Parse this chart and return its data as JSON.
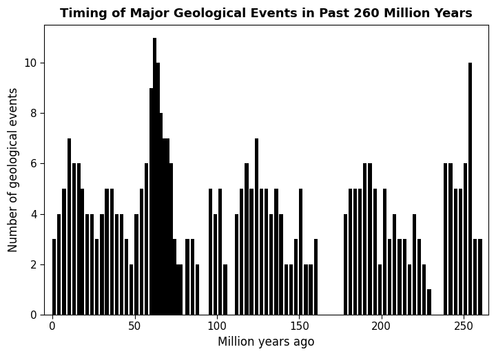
{
  "title": "Timing of Major Geological Events in Past 260 Million Years",
  "xlabel": "Million years ago",
  "ylabel": "Number of geological events",
  "bar_color": "#000000",
  "background_color": "#ffffff",
  "ylim": [
    0,
    11.5
  ],
  "xlim": [
    -5,
    265
  ],
  "yticks": [
    0,
    2,
    4,
    6,
    8,
    10
  ],
  "xticks": [
    0,
    50,
    100,
    150,
    200,
    250
  ],
  "title_fontsize": 13,
  "axis_fontsize": 12,
  "tick_fontsize": 11,
  "bar_width": 2.2,
  "bars": [
    {
      "x": 1,
      "height": 3
    },
    {
      "x": 4,
      "height": 4
    },
    {
      "x": 7,
      "height": 5
    },
    {
      "x": 10,
      "height": 7
    },
    {
      "x": 13,
      "height": 6
    },
    {
      "x": 16,
      "height": 6
    },
    {
      "x": 18,
      "height": 5
    },
    {
      "x": 21,
      "height": 4
    },
    {
      "x": 24,
      "height": 4
    },
    {
      "x": 27,
      "height": 3
    },
    {
      "x": 30,
      "height": 4
    },
    {
      "x": 33,
      "height": 5
    },
    {
      "x": 36,
      "height": 5
    },
    {
      "x": 39,
      "height": 4
    },
    {
      "x": 42,
      "height": 4
    },
    {
      "x": 45,
      "height": 3
    },
    {
      "x": 48,
      "height": 2
    },
    {
      "x": 51,
      "height": 4
    },
    {
      "x": 54,
      "height": 5
    },
    {
      "x": 57,
      "height": 6
    },
    {
      "x": 60,
      "height": 9
    },
    {
      "x": 62,
      "height": 11
    },
    {
      "x": 64,
      "height": 10
    },
    {
      "x": 66,
      "height": 8
    },
    {
      "x": 68,
      "height": 7
    },
    {
      "x": 70,
      "height": 7
    },
    {
      "x": 72,
      "height": 6
    },
    {
      "x": 74,
      "height": 3
    },
    {
      "x": 76,
      "height": 2
    },
    {
      "x": 78,
      "height": 2
    },
    {
      "x": 82,
      "height": 3
    },
    {
      "x": 85,
      "height": 3
    },
    {
      "x": 88,
      "height": 2
    },
    {
      "x": 96,
      "height": 5
    },
    {
      "x": 99,
      "height": 4
    },
    {
      "x": 102,
      "height": 5
    },
    {
      "x": 105,
      "height": 2
    },
    {
      "x": 112,
      "height": 4
    },
    {
      "x": 115,
      "height": 5
    },
    {
      "x": 118,
      "height": 6
    },
    {
      "x": 121,
      "height": 5
    },
    {
      "x": 124,
      "height": 7
    },
    {
      "x": 127,
      "height": 5
    },
    {
      "x": 130,
      "height": 5
    },
    {
      "x": 133,
      "height": 4
    },
    {
      "x": 136,
      "height": 5
    },
    {
      "x": 139,
      "height": 4
    },
    {
      "x": 142,
      "height": 2
    },
    {
      "x": 145,
      "height": 2
    },
    {
      "x": 148,
      "height": 3
    },
    {
      "x": 151,
      "height": 5
    },
    {
      "x": 154,
      "height": 2
    },
    {
      "x": 157,
      "height": 2
    },
    {
      "x": 160,
      "height": 3
    },
    {
      "x": 178,
      "height": 4
    },
    {
      "x": 181,
      "height": 5
    },
    {
      "x": 184,
      "height": 5
    },
    {
      "x": 187,
      "height": 5
    },
    {
      "x": 190,
      "height": 6
    },
    {
      "x": 193,
      "height": 6
    },
    {
      "x": 196,
      "height": 5
    },
    {
      "x": 199,
      "height": 2
    },
    {
      "x": 202,
      "height": 5
    },
    {
      "x": 205,
      "height": 3
    },
    {
      "x": 208,
      "height": 4
    },
    {
      "x": 211,
      "height": 3
    },
    {
      "x": 214,
      "height": 3
    },
    {
      "x": 217,
      "height": 2
    },
    {
      "x": 220,
      "height": 4
    },
    {
      "x": 223,
      "height": 3
    },
    {
      "x": 226,
      "height": 2
    },
    {
      "x": 229,
      "height": 1
    },
    {
      "x": 239,
      "height": 6
    },
    {
      "x": 242,
      "height": 6
    },
    {
      "x": 245,
      "height": 5
    },
    {
      "x": 248,
      "height": 5
    },
    {
      "x": 251,
      "height": 6
    },
    {
      "x": 254,
      "height": 10
    },
    {
      "x": 257,
      "height": 3
    },
    {
      "x": 260,
      "height": 3
    }
  ]
}
